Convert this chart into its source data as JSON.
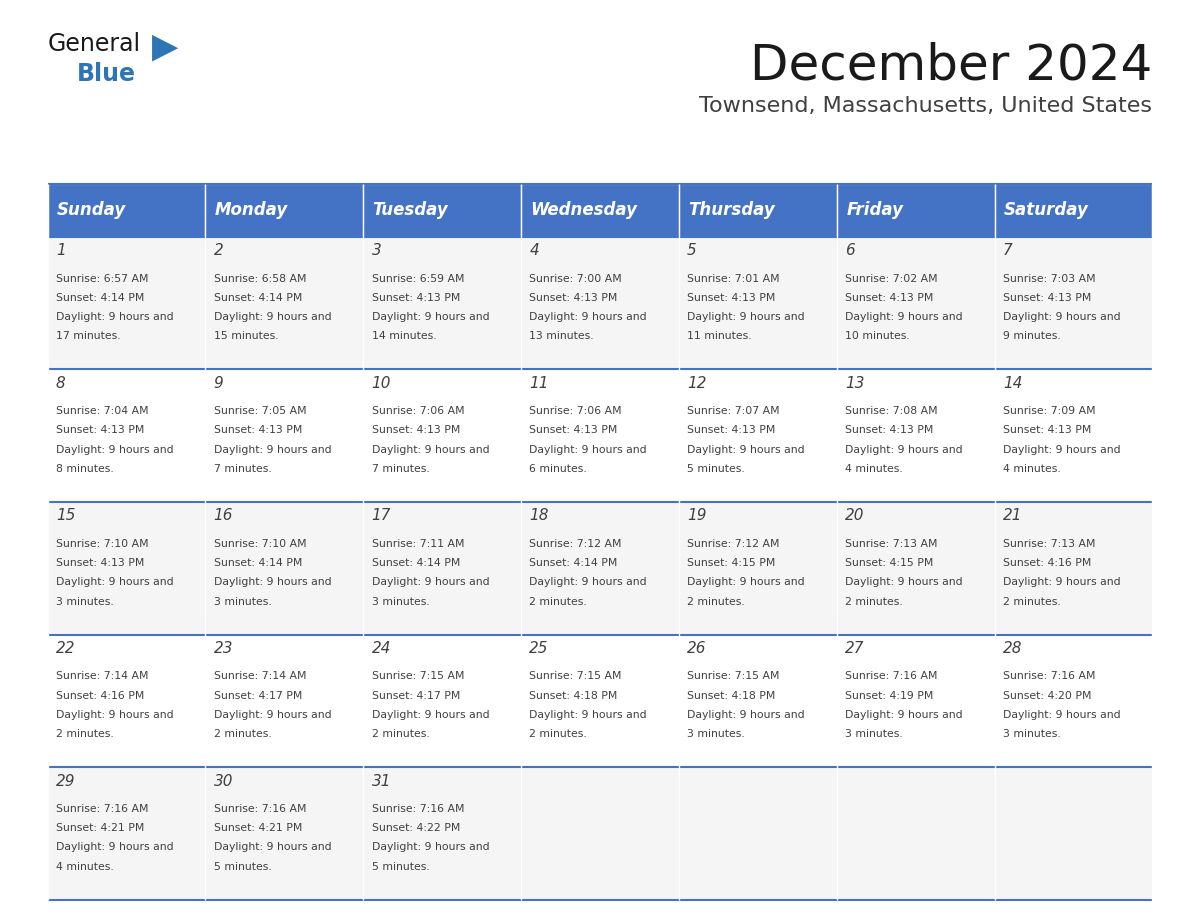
{
  "title": "December 2024",
  "subtitle": "Townsend, Massachusetts, United States",
  "header_color": "#4472C4",
  "header_text_color": "#FFFFFF",
  "day_names": [
    "Sunday",
    "Monday",
    "Tuesday",
    "Wednesday",
    "Thursday",
    "Friday",
    "Saturday"
  ],
  "calendar": [
    [
      {
        "day": 1,
        "sunrise": "6:57 AM",
        "sunset": "4:14 PM",
        "daylight": "9 hours and 17 minutes."
      },
      {
        "day": 2,
        "sunrise": "6:58 AM",
        "sunset": "4:14 PM",
        "daylight": "9 hours and 15 minutes."
      },
      {
        "day": 3,
        "sunrise": "6:59 AM",
        "sunset": "4:13 PM",
        "daylight": "9 hours and 14 minutes."
      },
      {
        "day": 4,
        "sunrise": "7:00 AM",
        "sunset": "4:13 PM",
        "daylight": "9 hours and 13 minutes."
      },
      {
        "day": 5,
        "sunrise": "7:01 AM",
        "sunset": "4:13 PM",
        "daylight": "9 hours and 11 minutes."
      },
      {
        "day": 6,
        "sunrise": "7:02 AM",
        "sunset": "4:13 PM",
        "daylight": "9 hours and 10 minutes."
      },
      {
        "day": 7,
        "sunrise": "7:03 AM",
        "sunset": "4:13 PM",
        "daylight": "9 hours and 9 minutes."
      }
    ],
    [
      {
        "day": 8,
        "sunrise": "7:04 AM",
        "sunset": "4:13 PM",
        "daylight": "9 hours and 8 minutes."
      },
      {
        "day": 9,
        "sunrise": "7:05 AM",
        "sunset": "4:13 PM",
        "daylight": "9 hours and 7 minutes."
      },
      {
        "day": 10,
        "sunrise": "7:06 AM",
        "sunset": "4:13 PM",
        "daylight": "9 hours and 7 minutes."
      },
      {
        "day": 11,
        "sunrise": "7:06 AM",
        "sunset": "4:13 PM",
        "daylight": "9 hours and 6 minutes."
      },
      {
        "day": 12,
        "sunrise": "7:07 AM",
        "sunset": "4:13 PM",
        "daylight": "9 hours and 5 minutes."
      },
      {
        "day": 13,
        "sunrise": "7:08 AM",
        "sunset": "4:13 PM",
        "daylight": "9 hours and 4 minutes."
      },
      {
        "day": 14,
        "sunrise": "7:09 AM",
        "sunset": "4:13 PM",
        "daylight": "9 hours and 4 minutes."
      }
    ],
    [
      {
        "day": 15,
        "sunrise": "7:10 AM",
        "sunset": "4:13 PM",
        "daylight": "9 hours and 3 minutes."
      },
      {
        "day": 16,
        "sunrise": "7:10 AM",
        "sunset": "4:14 PM",
        "daylight": "9 hours and 3 minutes."
      },
      {
        "day": 17,
        "sunrise": "7:11 AM",
        "sunset": "4:14 PM",
        "daylight": "9 hours and 3 minutes."
      },
      {
        "day": 18,
        "sunrise": "7:12 AM",
        "sunset": "4:14 PM",
        "daylight": "9 hours and 2 minutes."
      },
      {
        "day": 19,
        "sunrise": "7:12 AM",
        "sunset": "4:15 PM",
        "daylight": "9 hours and 2 minutes."
      },
      {
        "day": 20,
        "sunrise": "7:13 AM",
        "sunset": "4:15 PM",
        "daylight": "9 hours and 2 minutes."
      },
      {
        "day": 21,
        "sunrise": "7:13 AM",
        "sunset": "4:16 PM",
        "daylight": "9 hours and 2 minutes."
      }
    ],
    [
      {
        "day": 22,
        "sunrise": "7:14 AM",
        "sunset": "4:16 PM",
        "daylight": "9 hours and 2 minutes."
      },
      {
        "day": 23,
        "sunrise": "7:14 AM",
        "sunset": "4:17 PM",
        "daylight": "9 hours and 2 minutes."
      },
      {
        "day": 24,
        "sunrise": "7:15 AM",
        "sunset": "4:17 PM",
        "daylight": "9 hours and 2 minutes."
      },
      {
        "day": 25,
        "sunrise": "7:15 AM",
        "sunset": "4:18 PM",
        "daylight": "9 hours and 2 minutes."
      },
      {
        "day": 26,
        "sunrise": "7:15 AM",
        "sunset": "4:18 PM",
        "daylight": "9 hours and 3 minutes."
      },
      {
        "day": 27,
        "sunrise": "7:16 AM",
        "sunset": "4:19 PM",
        "daylight": "9 hours and 3 minutes."
      },
      {
        "day": 28,
        "sunrise": "7:16 AM",
        "sunset": "4:20 PM",
        "daylight": "9 hours and 3 minutes."
      }
    ],
    [
      {
        "day": 29,
        "sunrise": "7:16 AM",
        "sunset": "4:21 PM",
        "daylight": "9 hours and 4 minutes."
      },
      {
        "day": 30,
        "sunrise": "7:16 AM",
        "sunset": "4:21 PM",
        "daylight": "9 hours and 5 minutes."
      },
      {
        "day": 31,
        "sunrise": "7:16 AM",
        "sunset": "4:22 PM",
        "daylight": "9 hours and 5 minutes."
      },
      null,
      null,
      null,
      null
    ]
  ],
  "logo_text_general": "General",
  "logo_text_blue": "Blue",
  "logo_blue_color": "#2E75B6",
  "logo_black_color": "#1A1A1A",
  "grid_line_color": "#4472C4",
  "text_color": "#404040",
  "row_bg_even": "#F5F5F5",
  "row_bg_odd": "#FFFFFF"
}
